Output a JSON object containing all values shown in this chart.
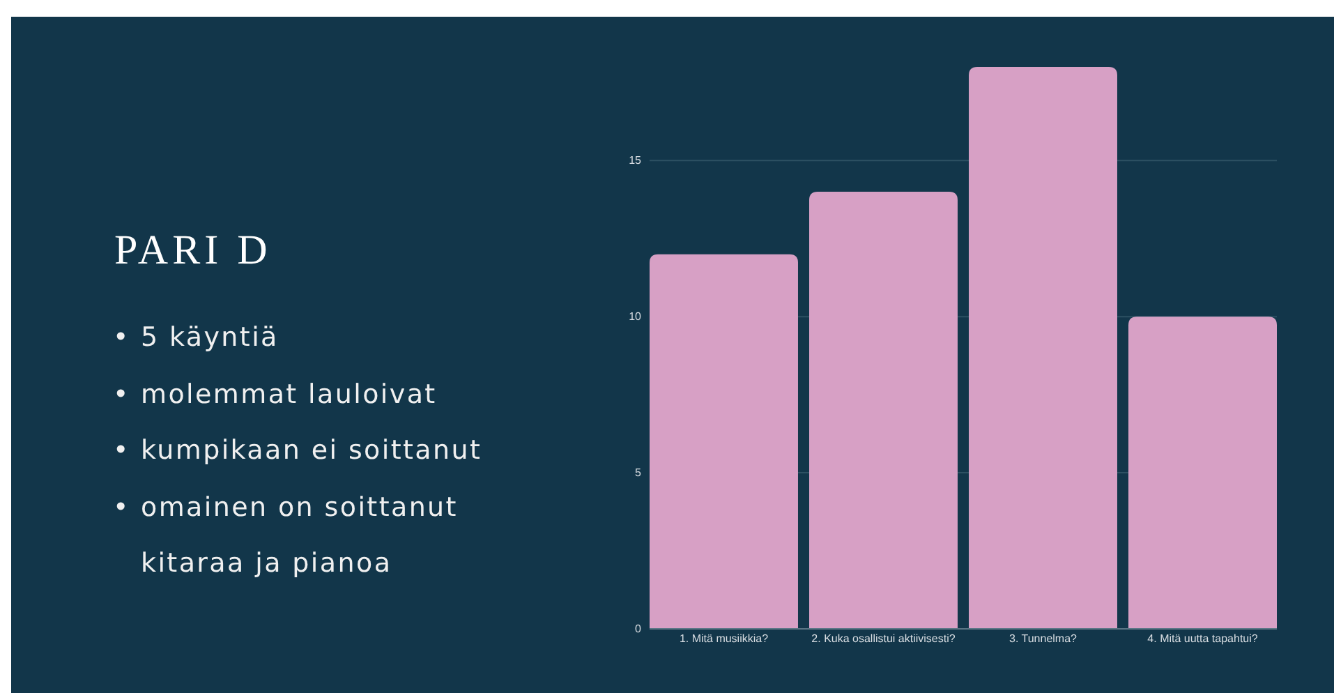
{
  "chart_data": {
    "type": "bar",
    "title": "PARI D",
    "annotations": [
      "• 5 käyntiä",
      "• molemmat lauloivat",
      "• kumpikaan ei soittanut",
      "• omainen on soittanut kitaraa ja pianoa"
    ],
    "categories": [
      "1. Mitä musiikkia?",
      "2. Kuka osallistui aktiivisesti?",
      "3. Tunnelma?",
      "4. Mitä uutta tapahtui?"
    ],
    "values": [
      12,
      14,
      18,
      10
    ],
    "color": "#d7a0c5",
    "ylim": [
      0,
      18
    ],
    "yticks": [
      0,
      5,
      10,
      15
    ],
    "grid": "y"
  }
}
